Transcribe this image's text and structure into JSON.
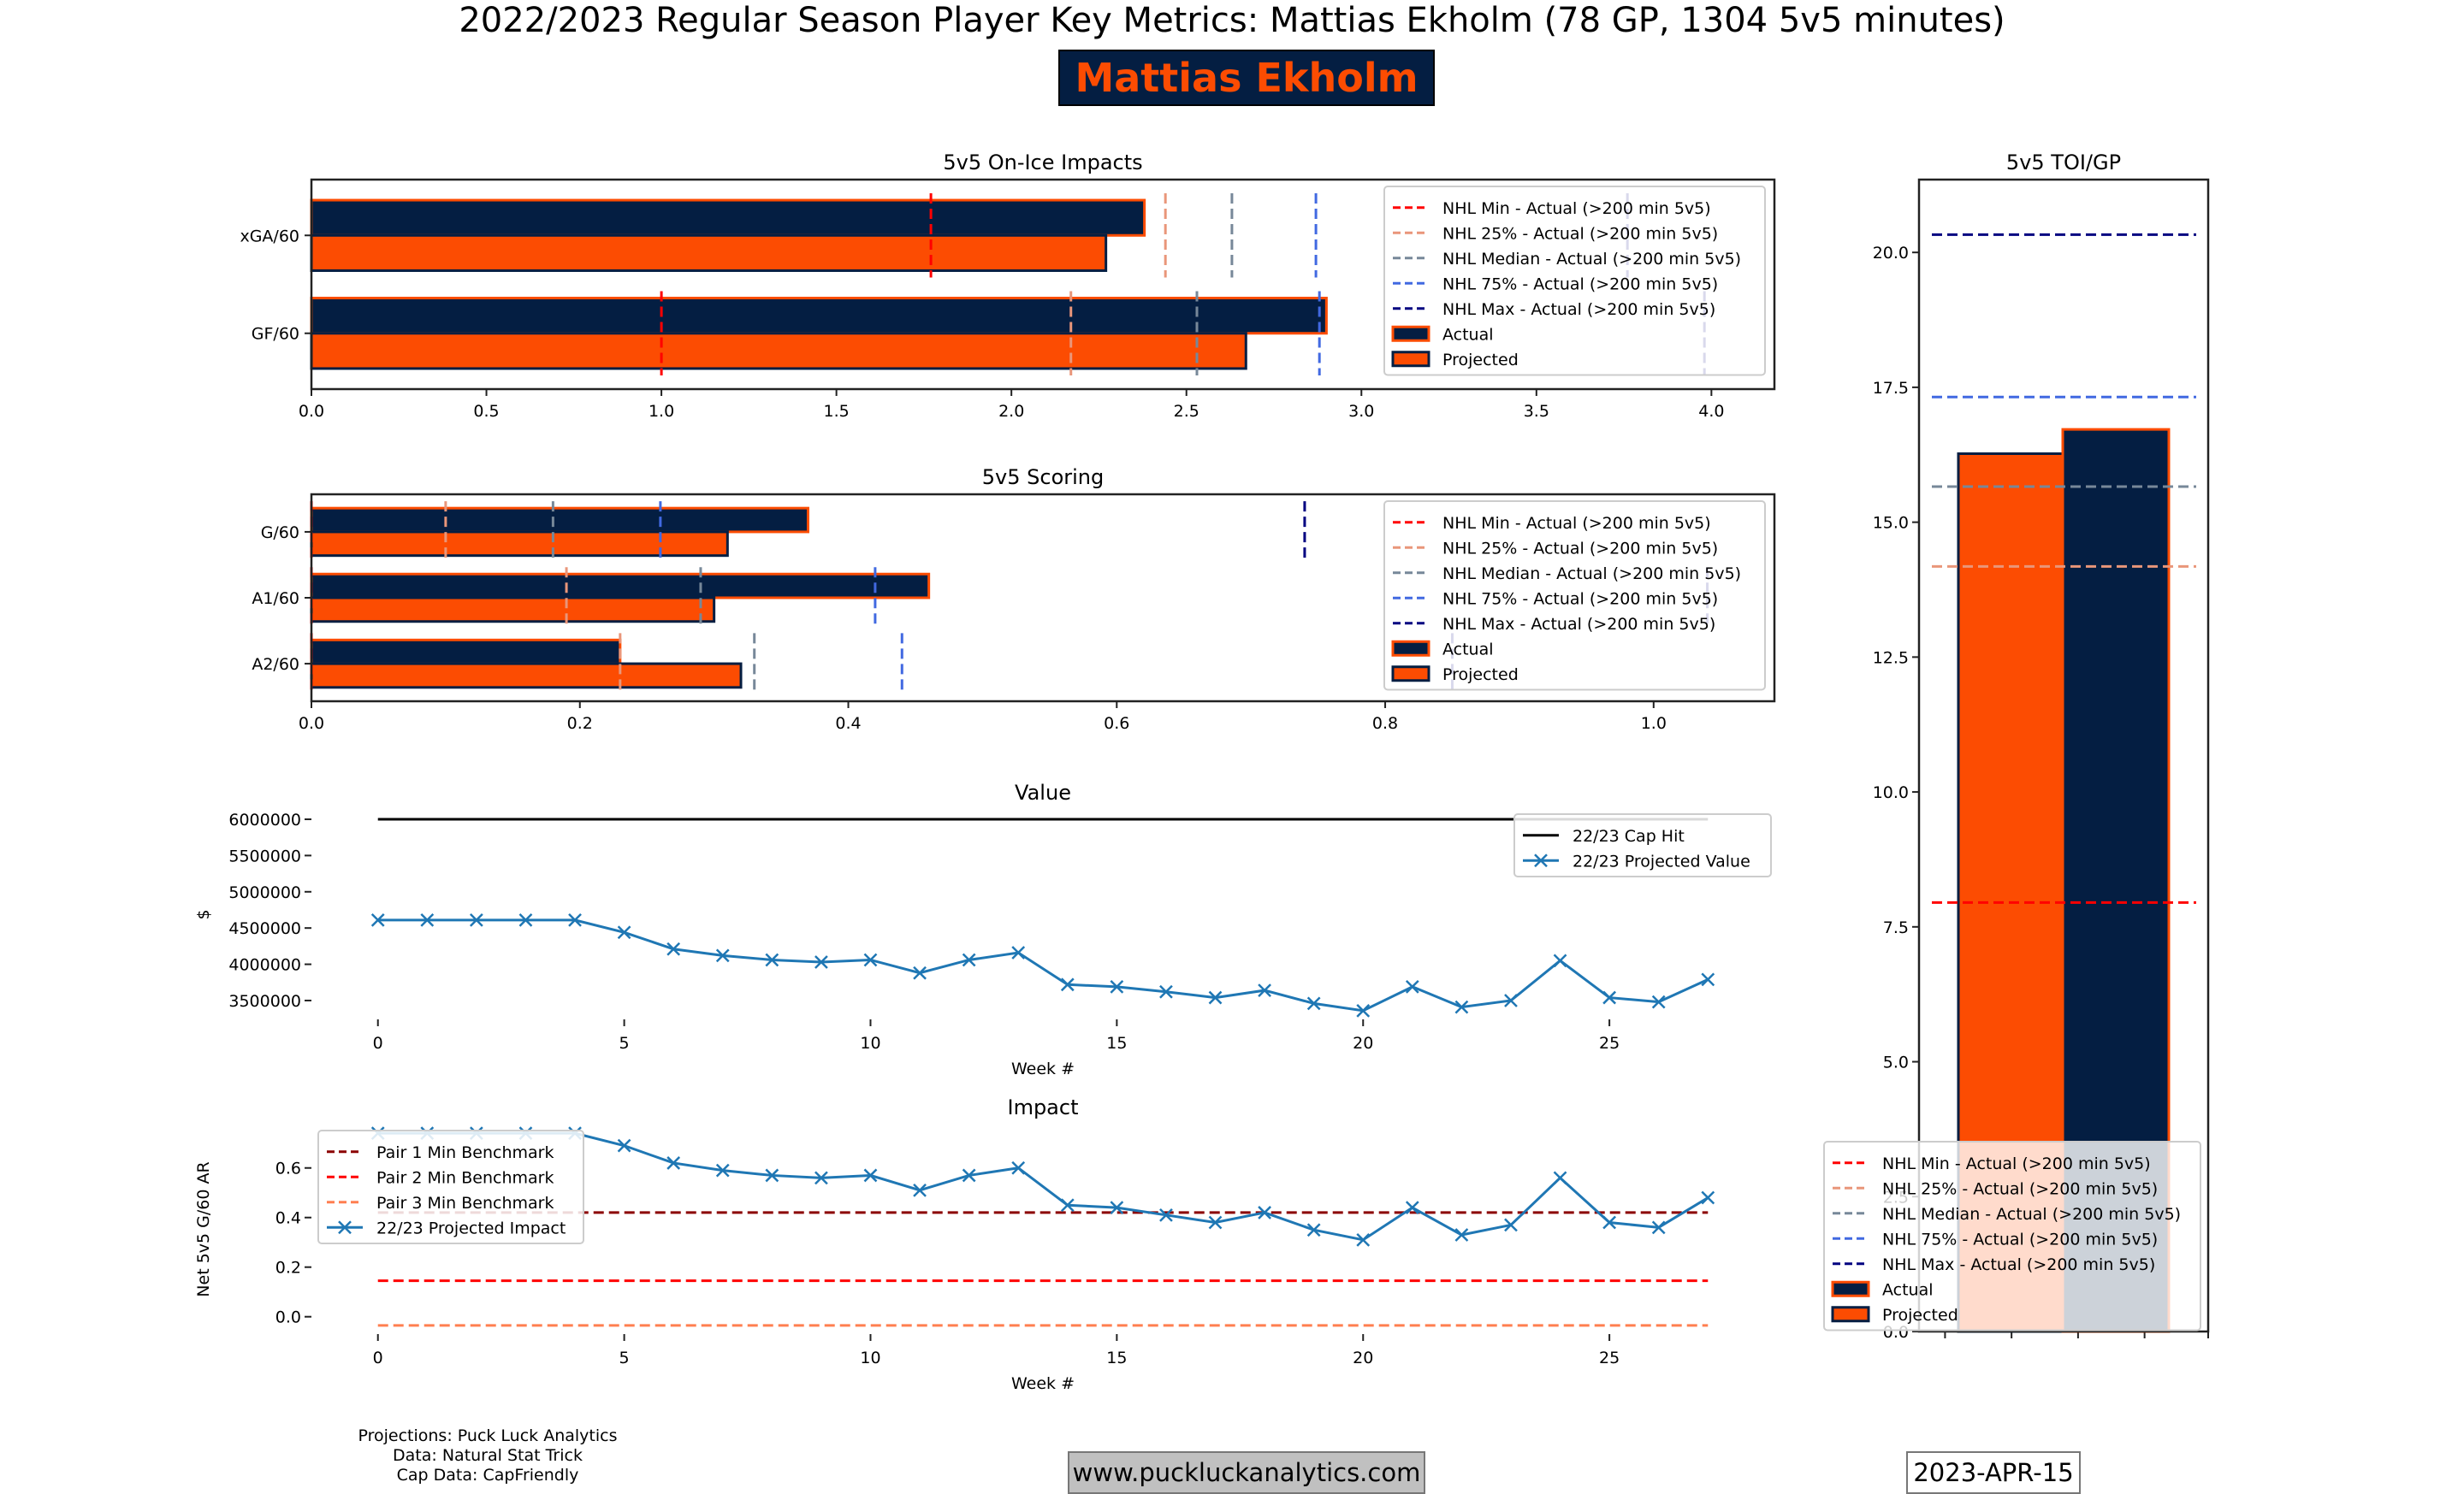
{
  "header": {
    "suptitle": "2022/2023 Regular Season Player Key Metrics: Mattias Ekholm (78 GP, 1304 5v5 minutes)",
    "player_name": "Mattias Ekholm"
  },
  "colors": {
    "actual_fill": "#041E42",
    "actual_edge": "#FC4C02",
    "projected_fill": "#FC4C02",
    "projected_edge": "#041E42",
    "nhl_min": "#FF0000",
    "nhl_25": "#E9967A",
    "nhl_median": "#778899",
    "nhl_75": "#4169E1",
    "nhl_max": "#000080",
    "cap_hit": "#000000",
    "projected_line": "#1F77B4",
    "pair1": "#8B0000",
    "pair2": "#FF0000",
    "pair3": "#FF7F50"
  },
  "legend_labels": {
    "nhl_min": "NHL Min - Actual (>200 min 5v5)",
    "nhl_25": "NHL 25% - Actual (>200 min 5v5)",
    "nhl_median": "NHL Median - Actual (>200 min 5v5)",
    "nhl_75": "NHL 75% - Actual (>200 min 5v5)",
    "nhl_max": "NHL Max - Actual (>200 min 5v5)",
    "actual": "Actual",
    "projected": "Projected"
  },
  "chart_data": [
    {
      "id": "impacts",
      "type": "bar",
      "orientation": "horizontal",
      "title": "5v5 On-Ice Impacts",
      "categories": [
        "xGA/60",
        "GF/60"
      ],
      "series": [
        {
          "name": "Actual",
          "values": [
            2.38,
            2.9
          ]
        },
        {
          "name": "Projected",
          "values": [
            2.27,
            2.67
          ]
        }
      ],
      "benchmarks": {
        "nhl_min": [
          1.77,
          1.0
        ],
        "nhl_25": [
          2.44,
          2.17
        ],
        "nhl_median": [
          2.63,
          2.53
        ],
        "nhl_75": [
          2.87,
          2.88
        ],
        "nhl_max": [
          3.76,
          3.98
        ]
      },
      "xlim": [
        0,
        4.18
      ],
      "xticks": [
        "0.0",
        "0.5",
        "1.0",
        "1.5",
        "2.0",
        "2.5",
        "3.0",
        "3.5",
        "4.0"
      ],
      "legend": "top-right"
    },
    {
      "id": "scoring",
      "type": "bar",
      "orientation": "horizontal",
      "title": "5v5 Scoring",
      "categories": [
        "G/60",
        "A1/60",
        "A2/60"
      ],
      "series": [
        {
          "name": "Actual",
          "values": [
            0.37,
            0.46,
            0.23
          ]
        },
        {
          "name": "Projected",
          "values": [
            0.31,
            0.3,
            0.32
          ]
        }
      ],
      "benchmarks": {
        "nhl_min": [
          0.0,
          0.0,
          0.0
        ],
        "nhl_25": [
          0.1,
          0.19,
          0.23
        ],
        "nhl_median": [
          0.18,
          0.29,
          0.33
        ],
        "nhl_75": [
          0.26,
          0.42,
          0.44
        ],
        "nhl_max": [
          0.74,
          1.04,
          0.85
        ]
      },
      "xlim": [
        0,
        1.09
      ],
      "xticks": [
        "0.0",
        "0.2",
        "0.4",
        "0.6",
        "0.8",
        "1.0"
      ],
      "legend": "top-right"
    },
    {
      "id": "value",
      "type": "line",
      "title": "Value",
      "xlabel": "Week #",
      "ylabel": "$",
      "x": [
        0,
        1,
        2,
        3,
        4,
        5,
        6,
        7,
        8,
        9,
        10,
        11,
        12,
        13,
        14,
        15,
        16,
        17,
        18,
        19,
        20,
        21,
        22,
        23,
        24,
        25,
        26,
        27
      ],
      "series": [
        {
          "name": "22/23 Cap Hit",
          "values": [
            6000000,
            6000000,
            6000000,
            6000000,
            6000000,
            6000000,
            6000000,
            6000000,
            6000000,
            6000000,
            6000000,
            6000000,
            6000000,
            6000000,
            6000000,
            6000000,
            6000000,
            6000000,
            6000000,
            6000000,
            6000000,
            6000000,
            6000000,
            6000000,
            6000000,
            6000000,
            6000000,
            6000000
          ]
        },
        {
          "name": "22/23 Projected Value",
          "values": [
            4610000,
            4610000,
            4610000,
            4610000,
            4610000,
            4440000,
            4210000,
            4120000,
            4060000,
            4030000,
            4060000,
            3880000,
            4060000,
            4160000,
            3720000,
            3690000,
            3620000,
            3540000,
            3640000,
            3460000,
            3360000,
            3690000,
            3410000,
            3500000,
            4050000,
            3540000,
            3480000,
            3790000
          ]
        }
      ],
      "xlim": [
        -1.35,
        28.35
      ],
      "ylim": [
        3240000,
        6130000
      ],
      "xticks": [
        0,
        5,
        10,
        15,
        20,
        25
      ],
      "yticks": [
        "3500000",
        "4000000",
        "4500000",
        "5000000",
        "5500000",
        "6000000"
      ],
      "legend": "top-right"
    },
    {
      "id": "impact",
      "type": "line",
      "title": "Impact",
      "xlabel": "Week #",
      "ylabel": "Net 5v5 G/60 AR",
      "x": [
        0,
        1,
        2,
        3,
        4,
        5,
        6,
        7,
        8,
        9,
        10,
        11,
        12,
        13,
        14,
        15,
        16,
        17,
        18,
        19,
        20,
        21,
        22,
        23,
        24,
        25,
        26,
        27
      ],
      "series": [
        {
          "name": "Pair 1 Min Benchmark",
          "values": [
            0.42,
            0.42,
            0.42,
            0.42,
            0.42,
            0.42,
            0.42,
            0.42,
            0.42,
            0.42,
            0.42,
            0.42,
            0.42,
            0.42,
            0.42,
            0.42,
            0.42,
            0.42,
            0.42,
            0.42,
            0.42,
            0.42,
            0.42,
            0.42,
            0.42,
            0.42,
            0.42,
            0.42
          ]
        },
        {
          "name": "Pair 2 Min Benchmark",
          "values": [
            0.145,
            0.145,
            0.145,
            0.145,
            0.145,
            0.145,
            0.145,
            0.145,
            0.145,
            0.145,
            0.145,
            0.145,
            0.145,
            0.145,
            0.145,
            0.145,
            0.145,
            0.145,
            0.145,
            0.145,
            0.145,
            0.145,
            0.145,
            0.145,
            0.145,
            0.145,
            0.145,
            0.145
          ]
        },
        {
          "name": "Pair 3 Min Benchmark",
          "values": [
            -0.035,
            -0.035,
            -0.035,
            -0.035,
            -0.035,
            -0.035,
            -0.035,
            -0.035,
            -0.035,
            -0.035,
            -0.035,
            -0.035,
            -0.035,
            -0.035,
            -0.035,
            -0.035,
            -0.035,
            -0.035,
            -0.035,
            -0.035,
            -0.035,
            -0.035,
            -0.035,
            -0.035,
            -0.035,
            -0.035,
            -0.035,
            -0.035
          ]
        },
        {
          "name": "22/23 Projected Impact",
          "values": [
            0.74,
            0.74,
            0.74,
            0.74,
            0.74,
            0.69,
            0.62,
            0.59,
            0.57,
            0.56,
            0.57,
            0.51,
            0.57,
            0.6,
            0.45,
            0.44,
            0.41,
            0.38,
            0.42,
            0.35,
            0.31,
            0.44,
            0.33,
            0.37,
            0.56,
            0.38,
            0.36,
            0.48
          ]
        }
      ],
      "xlim": [
        -1.35,
        28.35
      ],
      "ylim": [
        -0.07,
        0.775
      ],
      "xticks": [
        0,
        5,
        10,
        15,
        20,
        25
      ],
      "yticks": [
        "0.0",
        "0.2",
        "0.4",
        "0.6"
      ],
      "legend": "top-left"
    },
    {
      "id": "toi",
      "type": "bar",
      "title": "5v5 TOI/GP",
      "categories": [
        "Projected",
        "Actual"
      ],
      "values": [
        16.27,
        16.72
      ],
      "benchmarks": {
        "nhl_min": 7.95,
        "nhl_25": 14.18,
        "nhl_median": 15.66,
        "nhl_75": 17.32,
        "nhl_max": 20.33
      },
      "ylim": [
        0,
        21.35
      ],
      "yticks": [
        "0.0",
        "2.5",
        "5.0",
        "7.5",
        "10.0",
        "12.5",
        "15.0",
        "17.5",
        "20.0"
      ],
      "legend": "bottom"
    }
  ],
  "footer": {
    "credits": [
      "Projections: Puck Luck Analytics",
      "Data: Natural Stat Trick",
      "Cap Data: CapFriendly"
    ],
    "website": "www.puckluckanalytics.com",
    "date": "2023-APR-15"
  }
}
